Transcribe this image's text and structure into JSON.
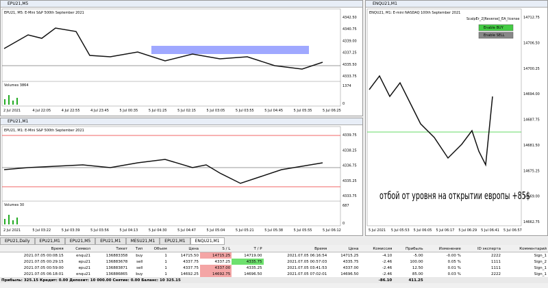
{
  "windows": [
    {
      "title": "EPU21,M5",
      "header": "EPU21, M5: E-Mini S&P 500th September 2021",
      "price_labels": [
        "4342.50",
        "4340.75",
        "4339.00",
        "4337.25",
        "4335.50",
        "4333.75"
      ],
      "time_labels": [
        "2 Jul 2021",
        "4 Jul 22:05",
        "4 Jul 22:55",
        "4 Jul 23:45",
        "5 Jul 00:35",
        "5 Jul 01:25",
        "5 Jul 02:15",
        "5 Jul 03:05",
        "5 Jul 03:55",
        "5 Jul 04:45",
        "5 Jul 05:35",
        "5 Jul 06:25"
      ],
      "volume_label": "Volumes 3864",
      "volume_ticks": [
        "1374",
        "0"
      ]
    },
    {
      "title": "EPU21,M1",
      "header": "EPU21, M1: E-Mini S&P 500th September 2021",
      "price_labels": [
        "4339.75",
        "4338.25",
        "4336.75",
        "4335.25",
        "4333.75"
      ],
      "time_labels": [
        "2 Jul 2021",
        "5 Jul 03:22",
        "5 Jul 03:39",
        "5 Jul 03:56",
        "5 Jul 04:13",
        "5 Jul 04:30",
        "5 Jul 04:47",
        "5 Jul 05:04",
        "5 Jul 05:21",
        "5 Jul 05:38",
        "5 Jul 05:55",
        "5 Jul 06:12"
      ],
      "volume_label": "Volumes 30",
      "volume_ticks": [
        "687",
        "0"
      ]
    },
    {
      "title": "ENQU21,M1",
      "header": "ENQU21, M1: E-mini NASDAQ 100th September 2021",
      "price_labels": [
        "14712.75",
        "14706.50",
        "14700.25",
        "14694.00",
        "14687.75",
        "14681.50",
        "14675.25",
        "14669.00",
        "14662.75"
      ],
      "time_labels": [
        "5 Jul 2021",
        "5 Jul 05:53",
        "5 Jul 06:05",
        "5 Jul 06:17",
        "5 Jul 06:29",
        "5 Jul 06:41",
        "5 Jul 06:57"
      ],
      "expert": "ScalpEr_2[Reverse]_EA_license",
      "buttons": [
        "Enable BUY",
        "Enable SELL"
      ],
      "annotation": "отбой от уровня на открытии европы +85$"
    }
  ],
  "tabs": [
    "EPU21,Daily",
    "EPU21,M1",
    "EPU21,M5",
    "EPU21,M1",
    "MESU21,M1",
    "EPU21,M1",
    "ENQU21,M1"
  ],
  "table": {
    "columns": [
      "Время",
      "Символ",
      "Тикет",
      "Тип",
      "Объем",
      "Цена",
      "S / L",
      "T / P",
      "Время",
      "Цена",
      "Комиссия",
      "Прибыль",
      "Изменение",
      "ID эксперта",
      "Комментарий"
    ],
    "rows": [
      [
        "2021.07.05 00:08:15",
        "enqu21",
        "136883358",
        "buy",
        "1",
        "14715.50",
        "14715.25",
        "14719.00",
        "2021.07.05 06:16:54",
        "14715.25",
        "-4.10",
        "-5.00",
        "-0.00 %",
        "2222",
        "Sign_1"
      ],
      [
        "2021.07.05 00:29:15",
        "epu21",
        "136883678",
        "sell",
        "1",
        "4337.75",
        "4337.25",
        "4335.75",
        "2021.07.05 00:57:03",
        "4335.75",
        "-2.46",
        "100.00",
        "0.05 %",
        "1111",
        "Sign_2"
      ],
      [
        "2021.07.05 00:59:00",
        "epu21",
        "136883871",
        "sell",
        "1",
        "4337.75",
        "4337.00",
        "4335.25",
        "2021.07.05 03:41:53",
        "4337.00",
        "-2.46",
        "12.50",
        "0.01 %",
        "1111",
        "Sign_1"
      ],
      [
        "2021.07.05 06:18:01",
        "enqu21",
        "136886865",
        "buy",
        "1",
        "14692.25",
        "14692.75",
        "14696.50",
        "2021.07.05 07:02:01",
        "14696.50",
        "-2.46",
        "85.00",
        "0.03 %",
        "2222",
        "Sign_1"
      ]
    ],
    "summary": "Прибыль: 325.15  Кредит: 0.00  Депозит: 10 000.00  Снятие: 0.00  Баланс: 10 325.15",
    "summary_commission": "-86.10",
    "summary_profit": "411.25"
  }
}
